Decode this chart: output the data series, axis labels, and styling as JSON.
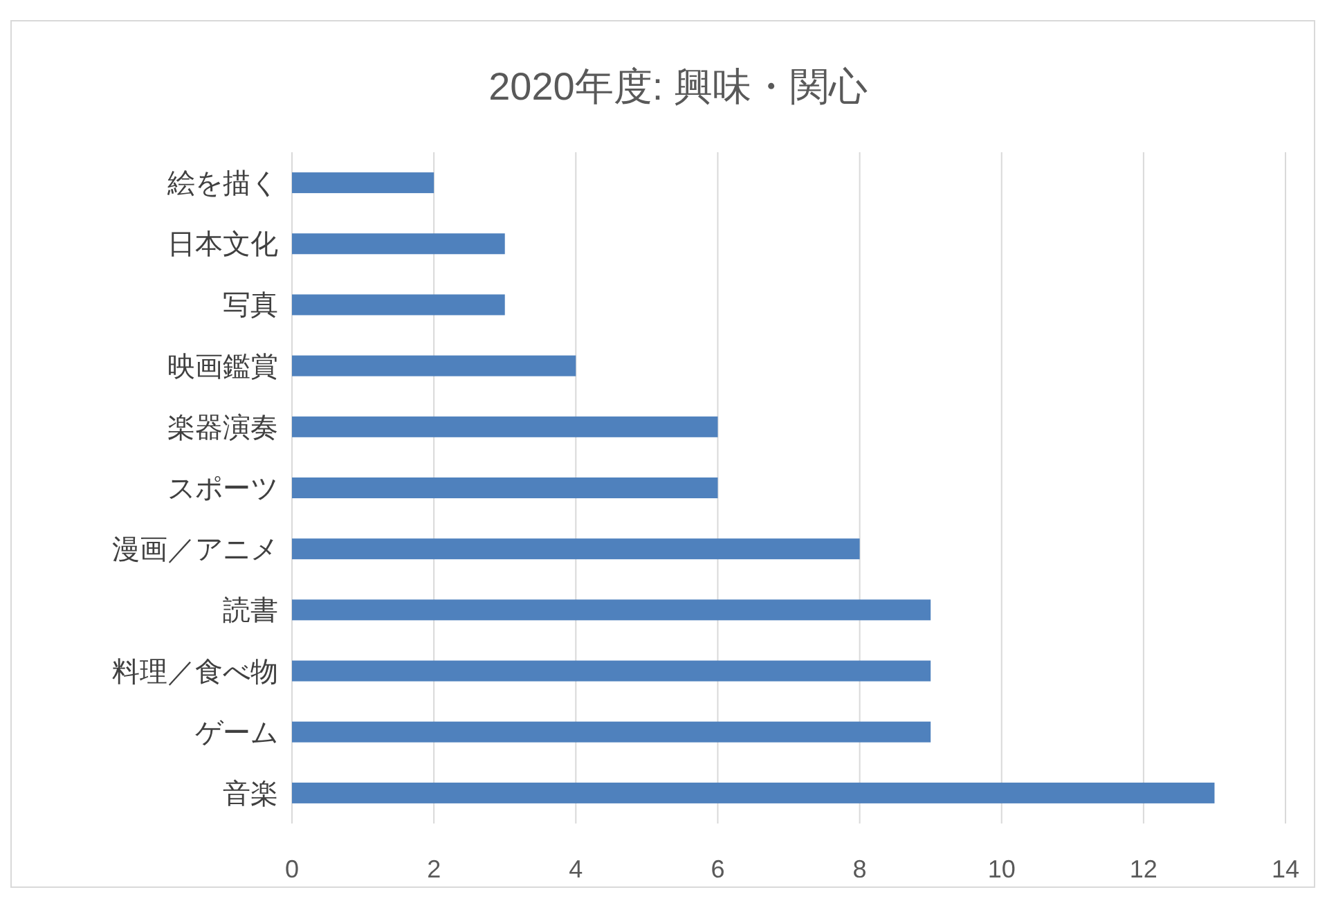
{
  "chart_data": {
    "type": "bar",
    "orientation": "horizontal",
    "title": "2020年度: 興味・関心",
    "categories": [
      "絵を描く",
      "日本文化",
      "写真",
      "映画鑑賞",
      "楽器演奏",
      "スポーツ",
      "漫画／アニメ",
      "読書",
      "料理／食べ物",
      "ゲーム",
      "音楽"
    ],
    "values": [
      2,
      3,
      3,
      4,
      6,
      6,
      8,
      9,
      9,
      9,
      13
    ],
    "color": "#4f81bd",
    "xlim": [
      0,
      14
    ],
    "xticks": [
      0,
      2,
      4,
      6,
      8,
      10,
      12,
      14
    ],
    "grid": "x"
  }
}
